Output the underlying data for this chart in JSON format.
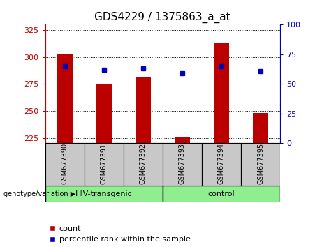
{
  "title": "GDS4229 / 1375863_a_at",
  "samples": [
    "GSM677390",
    "GSM677391",
    "GSM677392",
    "GSM677393",
    "GSM677394",
    "GSM677395"
  ],
  "counts": [
    303,
    275,
    282,
    226,
    313,
    248
  ],
  "percentile_ranks": [
    65,
    62,
    63,
    59,
    65,
    61
  ],
  "ylim_left": [
    220,
    330
  ],
  "ylim_right": [
    0,
    100
  ],
  "yticks_left": [
    225,
    250,
    275,
    300,
    325
  ],
  "yticks_right": [
    0,
    25,
    50,
    75,
    100
  ],
  "bar_color": "#bb0000",
  "dot_color": "#0000bb",
  "bar_width": 0.4,
  "legend_count_label": "count",
  "legend_percentile_label": "percentile rank within the sample",
  "sample_label_bg": "#c8c8c8",
  "group_area_bg": "#90ee90",
  "title_fontsize": 11,
  "axis_fontsize": 8,
  "sample_fontsize": 7,
  "group_fontsize": 8,
  "legend_fontsize": 8
}
